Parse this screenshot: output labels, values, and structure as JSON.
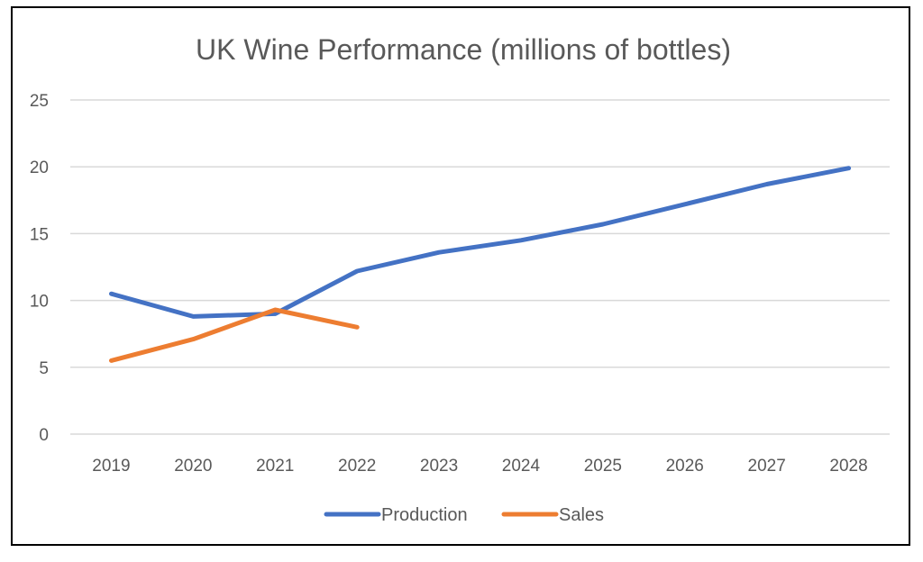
{
  "chart_data": {
    "type": "line",
    "title": "UK Wine Performance (millions of bottles)",
    "xlabel": "",
    "ylabel": "",
    "categories": [
      "2019",
      "2020",
      "2021",
      "2022",
      "2023",
      "2024",
      "2025",
      "2026",
      "2027",
      "2028"
    ],
    "ylim": [
      0,
      25
    ],
    "yticks": [
      0,
      5,
      10,
      15,
      20,
      25
    ],
    "grid": true,
    "legend_position": "bottom",
    "series": [
      {
        "name": "Production",
        "color": "#4472C4",
        "values": [
          10.5,
          8.8,
          9.0,
          12.2,
          13.6,
          14.5,
          15.7,
          17.2,
          18.7,
          19.9
        ]
      },
      {
        "name": "Sales",
        "color": "#ED7D31",
        "values": [
          5.5,
          7.1,
          9.3,
          8.0,
          null,
          null,
          null,
          null,
          null,
          null
        ]
      }
    ]
  }
}
